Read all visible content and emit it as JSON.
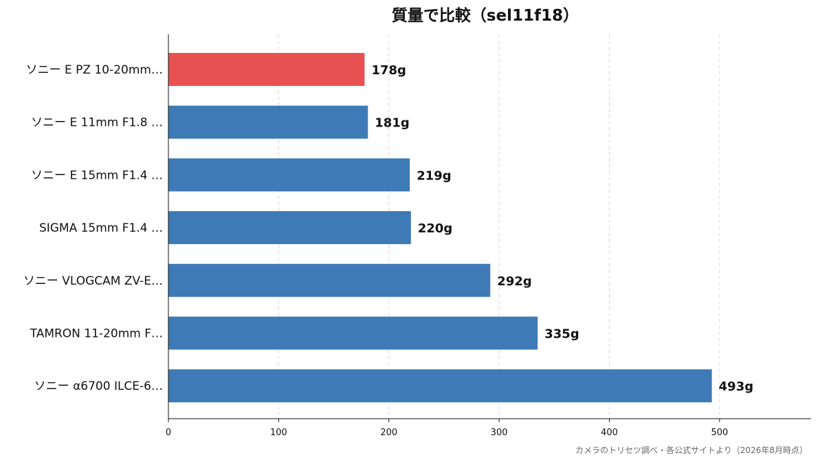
{
  "chart_data": {
    "type": "bar",
    "orientation": "horizontal",
    "title": "質量で比較（sel11f18）",
    "categories": [
      "ソニー E PZ 10-20mm…",
      "ソニー E 11mm F1.8 …",
      "ソニー E 15mm F1.4 …",
      "SIGMA 15mm F1.4 …",
      "ソニー VLOGCAM ZV-E…",
      "TAMRON 11-20mm F…",
      "ソニー α6700 ILCE-6…"
    ],
    "values": [
      178,
      181,
      219,
      220,
      292,
      335,
      493
    ],
    "value_labels": [
      "178g",
      "181g",
      "219g",
      "220g",
      "292g",
      "335g",
      "493g"
    ],
    "highlight_index": 0,
    "colors": {
      "highlight": "#e85151",
      "bar": "#3d7ab6",
      "grid": "#d8d8d8",
      "axis": "#111111"
    },
    "xlim": [
      0,
      583
    ],
    "x_ticks": [
      0,
      100,
      200,
      300,
      400,
      500
    ],
    "x_tick_labels": [
      "0",
      "100",
      "200",
      "300",
      "400",
      "500"
    ],
    "grid": "vertical-dashed",
    "legend": "none",
    "xlabel": "",
    "ylabel": ""
  },
  "footer": {
    "source": "カメラのトリセツ調べ・各公式サイトより（2026年8月時点）"
  }
}
